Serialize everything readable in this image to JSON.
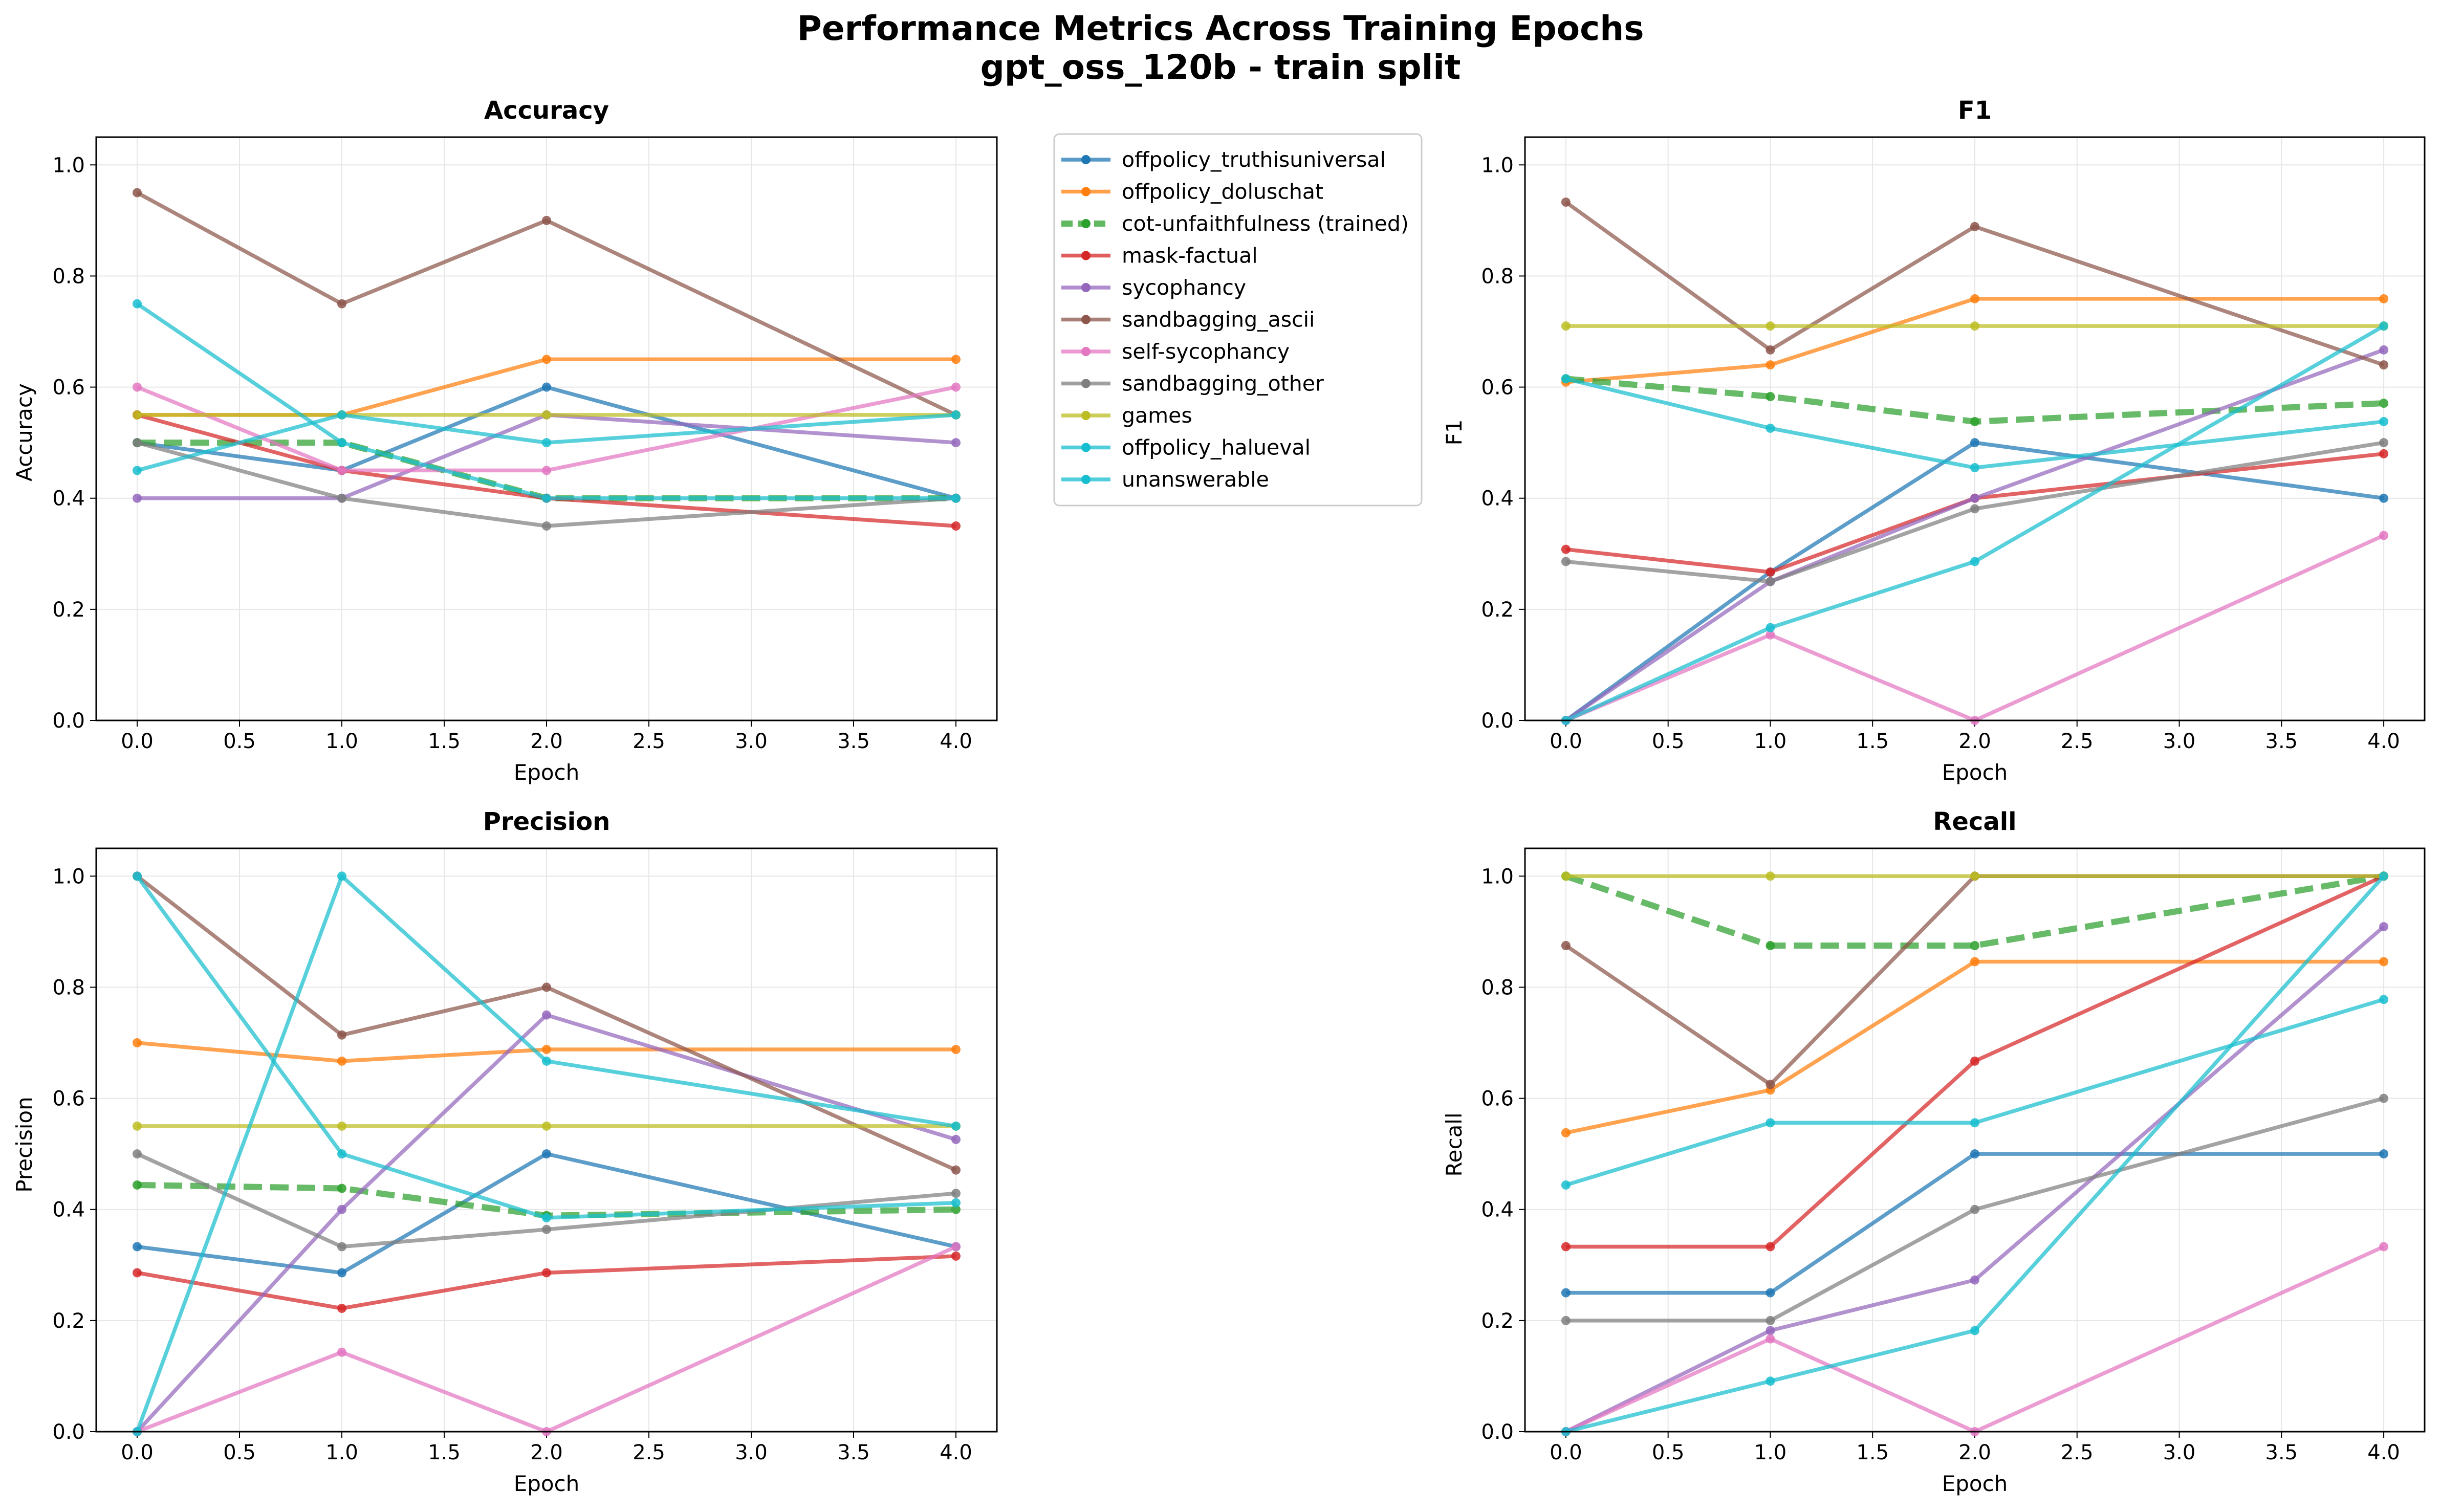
{
  "figure": {
    "title_line1": "Performance Metrics Across Training Epochs",
    "title_line2": "gpt_oss_120b - train split"
  },
  "chart_data": {
    "type": "line",
    "x": [
      0,
      1,
      2,
      4
    ],
    "xlim": [
      -0.2,
      4.2
    ],
    "ylim": [
      0.0,
      1.05
    ],
    "x_ticks": [
      "0.0",
      "0.5",
      "1.0",
      "1.5",
      "2.0",
      "2.5",
      "3.0",
      "3.5",
      "4.0"
    ],
    "y_ticks": [
      "0.0",
      "0.2",
      "0.4",
      "0.6",
      "0.8",
      "1.0"
    ],
    "grid": true,
    "legend_placement": "right of Accuracy panel",
    "series": [
      {
        "name": "offpolicy_truthisuniversal",
        "color": "#1f77b4",
        "style": "solid"
      },
      {
        "name": "offpolicy_doluschat",
        "color": "#ff7f0e",
        "style": "solid"
      },
      {
        "name": "cot-unfaithfulness (trained)",
        "color": "#2ca02c",
        "style": "dashed"
      },
      {
        "name": "mask-factual",
        "color": "#d62728",
        "style": "solid"
      },
      {
        "name": "sycophancy",
        "color": "#9467bd",
        "style": "solid"
      },
      {
        "name": "sandbagging_ascii",
        "color": "#8c564b",
        "style": "solid"
      },
      {
        "name": "self-sycophancy",
        "color": "#e377c2",
        "style": "solid"
      },
      {
        "name": "sandbagging_other",
        "color": "#7f7f7f",
        "style": "solid"
      },
      {
        "name": "games",
        "color": "#bcbd22",
        "style": "solid"
      },
      {
        "name": "offpolicy_halueval",
        "color": "#17becf",
        "style": "solid"
      },
      {
        "name": "unanswerable",
        "color": "#17becf",
        "style": "solid"
      }
    ],
    "panels": [
      {
        "title": "Accuracy",
        "xlabel": "Epoch",
        "ylabel": "Accuracy",
        "values": [
          [
            0.5,
            0.45,
            0.6,
            0.4
          ],
          [
            0.55,
            0.55,
            0.65,
            0.65
          ],
          [
            0.5,
            0.5,
            0.4,
            0.4
          ],
          [
            0.55,
            0.45,
            0.4,
            0.35
          ],
          [
            0.4,
            0.4,
            0.55,
            0.5
          ],
          [
            0.95,
            0.75,
            0.9,
            0.55
          ],
          [
            0.6,
            0.45,
            0.45,
            0.6
          ],
          [
            0.5,
            0.4,
            0.35,
            0.4
          ],
          [
            0.55,
            0.55,
            0.55,
            0.55
          ],
          [
            0.45,
            0.55,
            0.5,
            0.55
          ],
          [
            0.75,
            0.5,
            0.4,
            0.4
          ]
        ]
      },
      {
        "title": "F1",
        "xlabel": "Epoch",
        "ylabel": "F1",
        "values": [
          [
            0.0,
            0.267,
            0.5,
            0.4
          ],
          [
            0.609,
            0.64,
            0.759,
            0.759
          ],
          [
            0.615,
            0.583,
            0.538,
            0.571
          ],
          [
            0.308,
            0.267,
            0.4,
            0.48
          ],
          [
            0.0,
            0.25,
            0.4,
            0.667
          ],
          [
            0.933,
            0.667,
            0.889,
            0.64
          ],
          [
            0.0,
            0.154,
            0.0,
            0.333
          ],
          [
            0.286,
            0.25,
            0.381,
            0.5
          ],
          [
            0.71,
            0.71,
            0.71,
            0.71
          ],
          [
            0.615,
            0.526,
            0.455,
            0.538
          ],
          [
            0.0,
            0.167,
            0.286,
            0.71
          ]
        ]
      },
      {
        "title": "Precision",
        "xlabel": "Epoch",
        "ylabel": "Precision",
        "values": [
          [
            0.333,
            0.286,
            0.5,
            0.333
          ],
          [
            0.7,
            0.667,
            0.688,
            0.688
          ],
          [
            0.444,
            0.438,
            0.389,
            0.4
          ],
          [
            0.286,
            0.222,
            0.286,
            0.316
          ],
          [
            0.0,
            0.4,
            0.75,
            0.526
          ],
          [
            1.0,
            0.714,
            0.8,
            0.471
          ],
          [
            0.0,
            0.143,
            0.0,
            0.333
          ],
          [
            0.5,
            0.333,
            0.364,
            0.429
          ],
          [
            0.55,
            0.55,
            0.55,
            0.55
          ],
          [
            1.0,
            0.5,
            0.385,
            0.412
          ],
          [
            0.0,
            1.0,
            0.667,
            0.55
          ]
        ]
      },
      {
        "title": "Recall",
        "xlabel": "Epoch",
        "ylabel": "Recall",
        "values": [
          [
            0.25,
            0.25,
            0.5,
            0.5
          ],
          [
            0.538,
            0.615,
            0.846,
            0.846
          ],
          [
            1.0,
            0.875,
            0.875,
            1.0
          ],
          [
            0.333,
            0.333,
            0.667,
            1.0
          ],
          [
            0.0,
            0.182,
            0.273,
            0.909
          ],
          [
            0.875,
            0.625,
            1.0,
            1.0
          ],
          [
            0.0,
            0.167,
            0.0,
            0.333
          ],
          [
            0.2,
            0.2,
            0.4,
            0.6
          ],
          [
            1.0,
            1.0,
            1.0,
            1.0
          ],
          [
            0.444,
            0.556,
            0.556,
            0.778
          ],
          [
            0.0,
            0.091,
            0.182,
            1.0
          ]
        ]
      }
    ]
  }
}
